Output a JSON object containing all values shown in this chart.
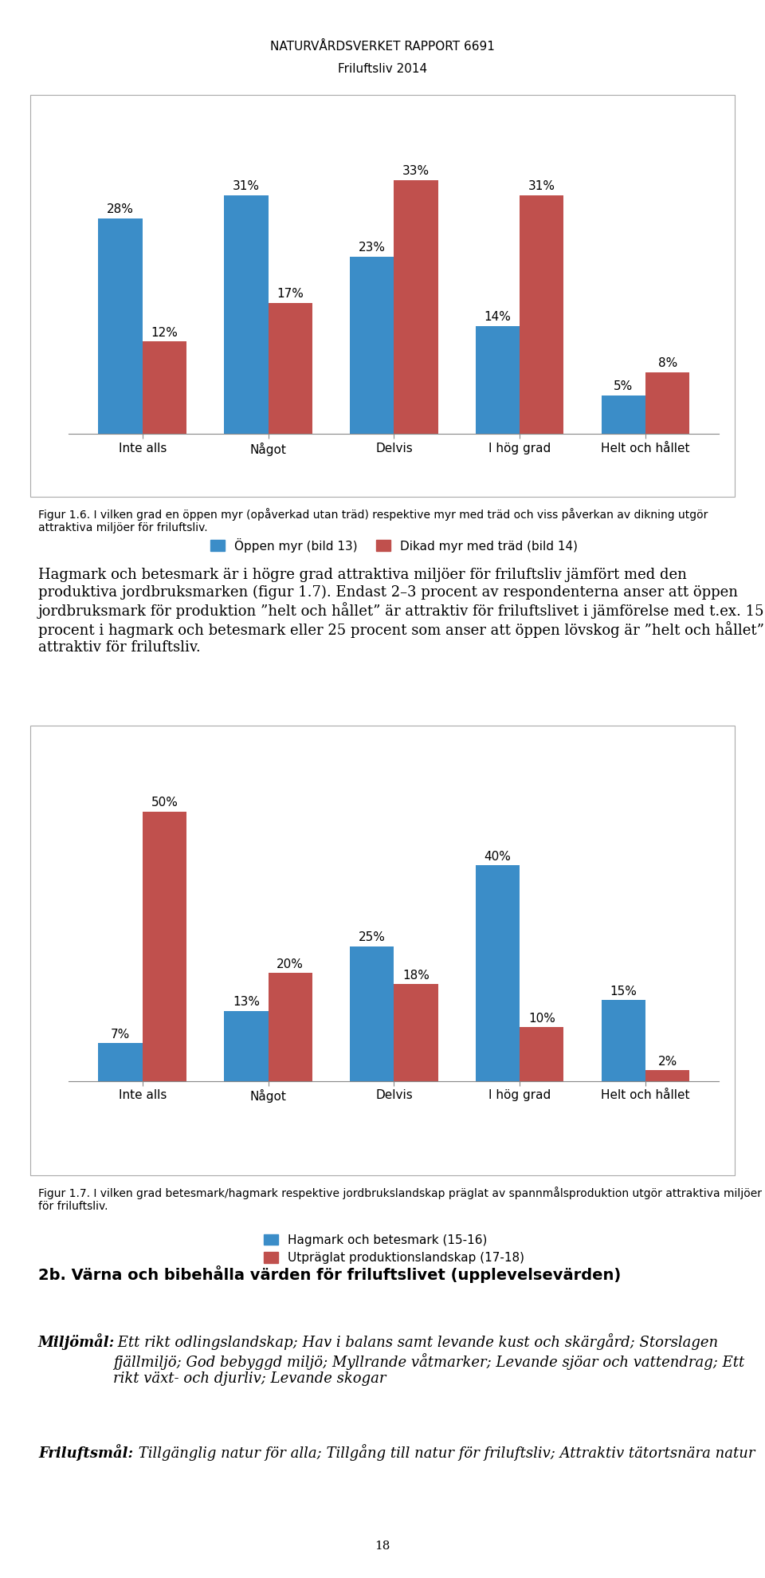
{
  "page_title_line1": "NATURVÅRDSVERKET RAPPORT 6691",
  "page_title_line2": "Friluftsliv 2014",
  "chart1": {
    "categories": [
      "Inte alls",
      "Något",
      "Delvis",
      "I hög grad",
      "Helt och hållet"
    ],
    "series1_label": "Öppen myr (bild 13)",
    "series1_values": [
      28,
      31,
      23,
      14,
      5
    ],
    "series1_color": "#3B8DC8",
    "series2_label": "Dikad myr med träd (bild 14)",
    "series2_values": [
      12,
      17,
      33,
      31,
      8
    ],
    "series2_color": "#C0504D",
    "ylim": [
      0,
      40
    ]
  },
  "fig1_caption": "Figur 1.6. I vilken grad en öppen myr (opåverkad utan träd) respektive myr med träd och viss påverkan av dikning utgör attraktiva miljöer för friluftsliv.",
  "body_text1": "Hagmark och betesmark är i högre grad attraktiva miljöer för friluftsliv jämfört med den produktiva jordbruksmarken (figur 1.7). Endast 2–3 procent av respondenterna anser att öppen jordbruksmark för produktion ”helt och hållet” är attraktiv för friluftslivet i jämförelse med t.ex. 15 procent i hagmark och betesmark eller 25 procent som anser att öppen lövskog är ”helt och hållet” attraktiv för friluftsliv.",
  "chart2": {
    "categories": [
      "Inte alls",
      "Något",
      "Delvis",
      "I hög grad",
      "Helt och hållet"
    ],
    "series1_label": "Hagmark och betesmark (15-16)",
    "series1_values": [
      7,
      13,
      25,
      40,
      15
    ],
    "series1_color": "#3B8DC8",
    "series2_label": "Utpräglat produktionslandskap (17-18)",
    "series2_values": [
      50,
      20,
      18,
      10,
      2
    ],
    "series2_color": "#C0504D",
    "ylim": [
      0,
      60
    ]
  },
  "fig2_caption": "Figur 1.7. I vilken grad betesmark/hagmark respektive jordbrukslandskap präglat av spannmålsproduktion utgör attraktiva miljöer för friluftsliv.",
  "body_text2_title": "2b. Värna och bibehålla värden för friluftslivet (upplevelsevärden)",
  "body_text2_miljomal_bold": "Miljömål:",
  "body_text2_miljomal_rest": " Ett rikt odlingslandskap; Hav i balans samt levande kust och skärgård; Storslagen fjällmiljö; God bebyggd miljö; Myllrande våtmarker; Levande sjöar och vattendrag; Ett rikt växt- och djurliv; Levande skogar",
  "body_text2_friluftmal_bold": "Friluftsmål:",
  "body_text2_friluftmal_rest": " Tillgänglig natur för alla; Tillgång till natur för friluftsliv; Attraktiv tätortsnära natur",
  "page_number": "18",
  "bar_width": 0.35,
  "label_fontsize": 11,
  "tick_fontsize": 11,
  "caption_fontsize": 10,
  "body_fontsize": 13,
  "header_fontsize": 11
}
